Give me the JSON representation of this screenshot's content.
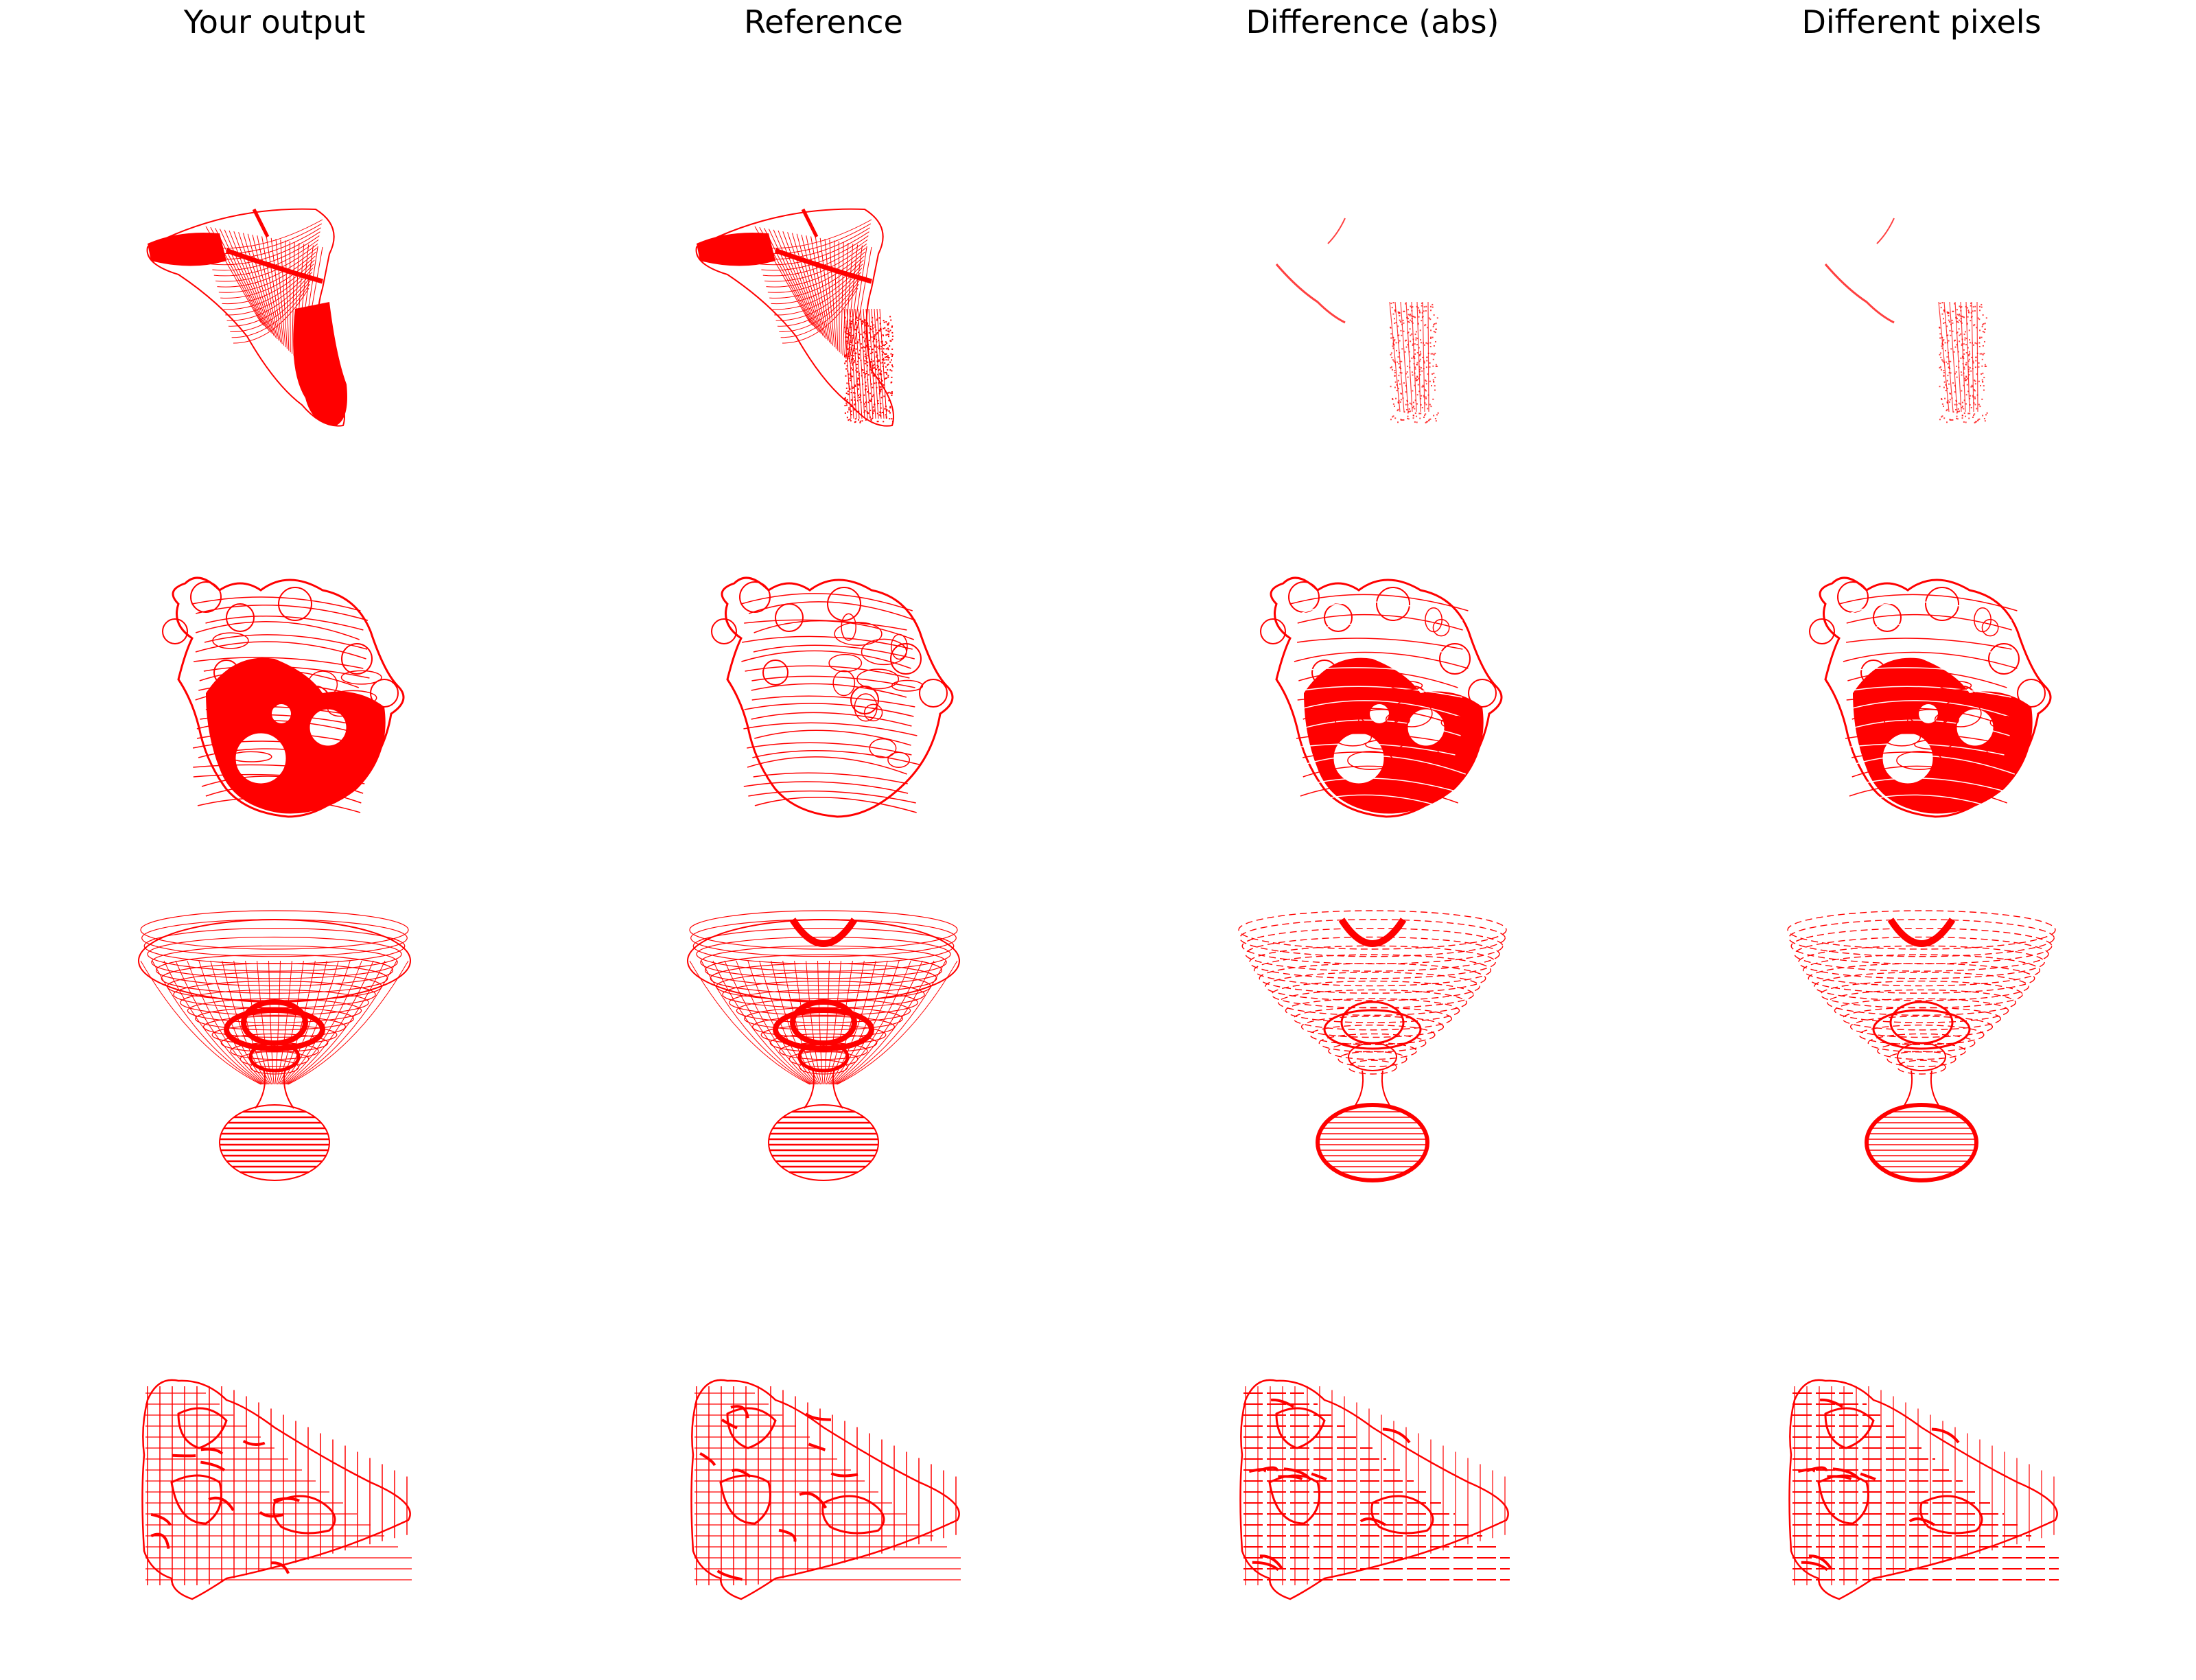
{
  "columns": [
    {
      "title": "Your output"
    },
    {
      "title": "Reference"
    },
    {
      "title": "Difference (abs)"
    },
    {
      "title": "Different pixels"
    }
  ],
  "rows": [
    {
      "shape": "mannequin-head"
    },
    {
      "shape": "lumpy-organic"
    },
    {
      "shape": "goblet"
    },
    {
      "shape": "bean-loop"
    }
  ],
  "colors": {
    "wire": "#ff0000",
    "background": "#ffffff"
  }
}
